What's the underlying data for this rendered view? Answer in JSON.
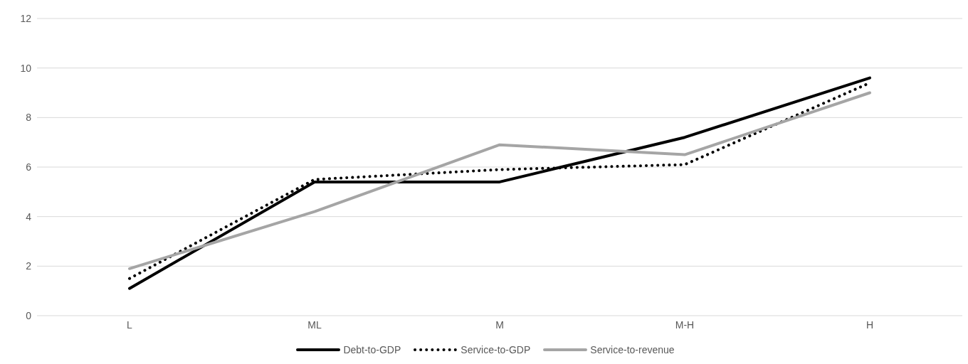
{
  "chart_data": {
    "type": "line",
    "categories": [
      "L",
      "ML",
      "M",
      "M-H",
      "H"
    ],
    "series": [
      {
        "name": "Debt-to-GDP",
        "color": "#000000",
        "line_style": "solid",
        "values": [
          1.1,
          5.4,
          5.4,
          7.2,
          9.6
        ]
      },
      {
        "name": "Service-to-GDP",
        "color": "#000000",
        "line_style": "dotted",
        "values": [
          1.5,
          5.5,
          5.9,
          6.1,
          9.4
        ]
      },
      {
        "name": "Service-to-revenue",
        "color": "#a5a5a5",
        "line_style": "solid",
        "values": [
          1.9,
          4.2,
          6.9,
          6.5,
          9.0
        ]
      }
    ],
    "ylim": [
      0,
      12
    ],
    "yticks": [
      0,
      2,
      4,
      6,
      8,
      10,
      12
    ],
    "grid": "y",
    "legend": "bottom",
    "marker": "none"
  }
}
